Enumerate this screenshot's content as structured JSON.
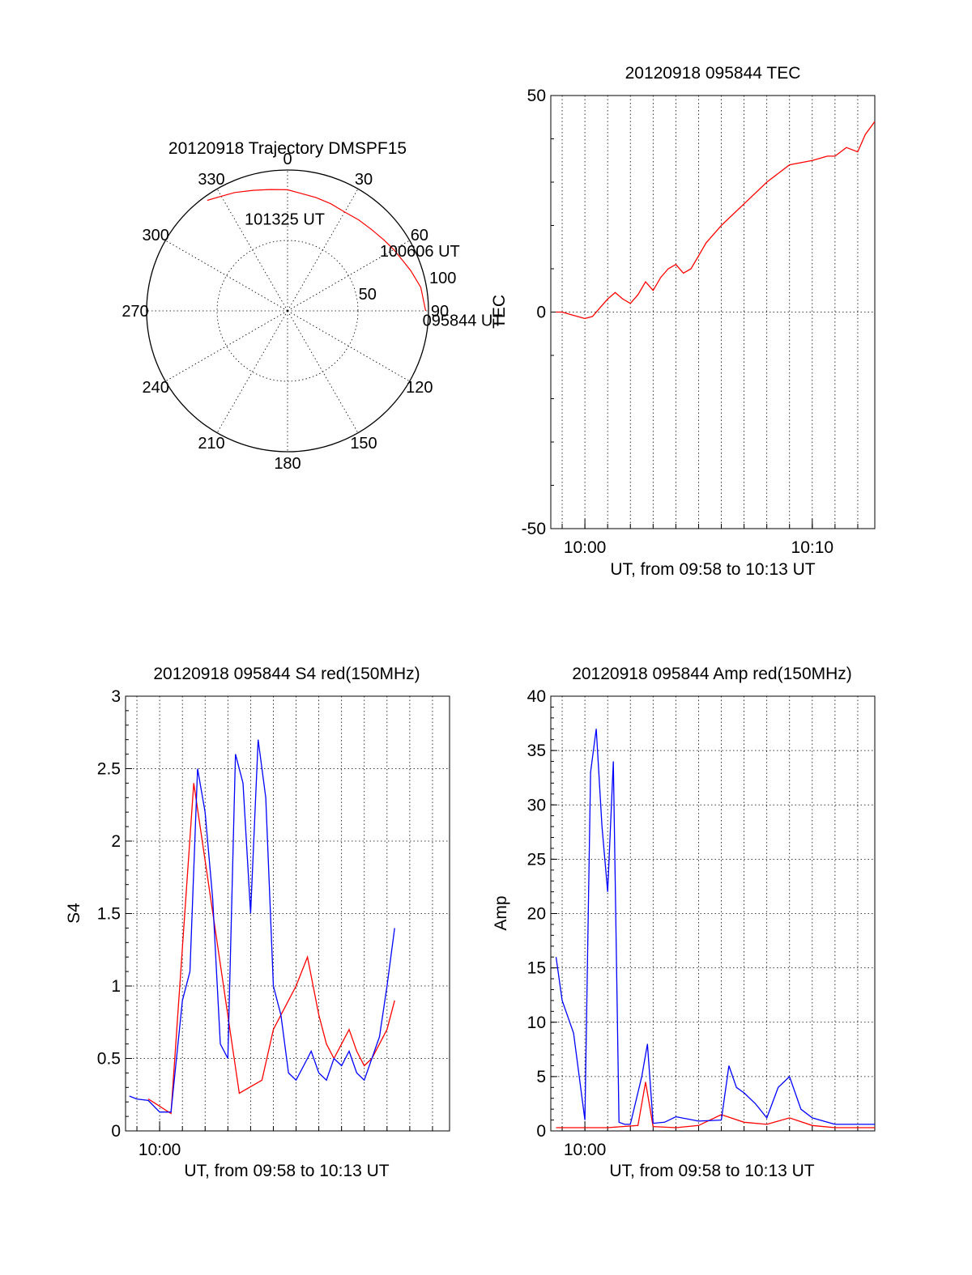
{
  "chart_data": [
    {
      "type": "polar",
      "title": "20120918 Trajectory DMSPF15",
      "angle_labels": [
        "0",
        "30",
        "60",
        "90",
        "120",
        "150",
        "180",
        "210",
        "240",
        "270",
        "300",
        "330"
      ],
      "radius_labels": [
        "50",
        "100"
      ],
      "rlim": [
        0,
        100
      ],
      "rings": [
        50,
        100
      ],
      "grid": true,
      "series": [
        {
          "color": "#ff0000",
          "points": [
            {
              "az": 90,
              "r": 98
            },
            {
              "az": 80,
              "r": 96
            },
            {
              "az": 72,
              "r": 92
            },
            {
              "az": 66,
              "r": 89
            },
            {
              "az": 60,
              "r": 87
            },
            {
              "az": 54,
              "r": 85
            },
            {
              "az": 46,
              "r": 83
            },
            {
              "az": 38,
              "r": 82
            },
            {
              "az": 30,
              "r": 81
            },
            {
              "az": 22,
              "r": 82
            },
            {
              "az": 14,
              "r": 83
            },
            {
              "az": 6,
              "r": 84
            },
            {
              "az": 0,
              "r": 86
            },
            {
              "az": 352,
              "r": 87
            },
            {
              "az": 344,
              "r": 89
            },
            {
              "az": 336,
              "r": 92
            },
            {
              "az": 330,
              "r": 94
            },
            {
              "az": 324,
              "r": 97
            }
          ]
        }
      ],
      "annotations": [
        {
          "text": "095844 UT",
          "az": 94,
          "r": 96
        },
        {
          "text": "100606 UT",
          "az": 57,
          "r": 78
        },
        {
          "text": "101325 UT",
          "az": 335,
          "r": 72
        }
      ]
    },
    {
      "type": "line",
      "title": "20120918 095844 TEC",
      "xlabel": "UT, from 09:58 to 10:13 UT",
      "ylabel": "TEC",
      "xlim": [
        "09:58:30",
        "10:12:45"
      ],
      "ylim": [
        -50,
        50
      ],
      "x_tick_labels": [
        "10:00",
        "10:10"
      ],
      "y_tick_labels": [
        "50",
        "0",
        "-50"
      ],
      "y_ticks": [
        50,
        0,
        -50
      ],
      "grid": "vertical",
      "series": [
        {
          "color": "#ff0000",
          "x": [
            "09:58:44",
            "09:59:00",
            "09:59:20",
            "09:59:40",
            "10:00:00",
            "10:00:20",
            "10:00:40",
            "10:01:00",
            "10:01:20",
            "10:01:40",
            "10:02:00",
            "10:02:20",
            "10:02:40",
            "10:03:00",
            "10:03:20",
            "10:03:40",
            "10:04:00",
            "10:04:20",
            "10:04:40",
            "10:05:00",
            "10:05:20",
            "10:05:40",
            "10:06:00",
            "10:07:00",
            "10:08:00",
            "10:09:00",
            "10:10:00",
            "10:10:40",
            "10:11:00",
            "10:11:30",
            "10:12:00",
            "10:12:20",
            "10:12:45"
          ],
          "y": [
            0,
            0,
            -0.5,
            -1,
            -1.5,
            -1,
            1,
            3,
            4.5,
            3,
            2,
            4,
            7,
            5,
            8,
            10,
            11,
            9,
            10,
            13,
            16,
            18,
            20,
            25,
            30,
            34,
            35,
            36,
            36,
            38,
            37,
            41,
            44
          ]
        }
      ]
    },
    {
      "type": "line",
      "title": "20120918 095844 S4 red(150MHz)",
      "xlabel": "UT, from 09:58 to 10:13 UT",
      "ylabel": "S4",
      "xlim": [
        "09:58:30",
        "10:12:45"
      ],
      "ylim": [
        0,
        3
      ],
      "x_tick_labels": [
        "10:00"
      ],
      "y_tick_labels": [
        "0",
        "0.5",
        "1",
        "1.5",
        "2",
        "2.5",
        "3"
      ],
      "y_ticks": [
        0,
        0.5,
        1,
        1.5,
        2,
        2.5,
        3
      ],
      "grid": true,
      "series": [
        {
          "color": "#ff0000",
          "x": [
            "09:59:30",
            "10:00:30",
            "10:01:30",
            "10:03:30",
            "10:04:30",
            "10:05:00",
            "10:05:30",
            "10:06:00",
            "10:06:30",
            "10:07:00",
            "10:07:20",
            "10:07:40",
            "10:08:00",
            "10:08:20",
            "10:08:40",
            "10:09:00",
            "10:09:20",
            "10:09:40",
            "10:10:00",
            "10:10:20"
          ],
          "y": [
            0.22,
            0.12,
            2.4,
            0.26,
            0.35,
            0.7,
            0.85,
            1.0,
            1.2,
            0.8,
            0.6,
            0.5,
            0.6,
            0.7,
            0.55,
            0.45,
            0.5,
            0.6,
            0.7,
            0.9
          ]
        },
        {
          "color": "#0000ff",
          "x": [
            "09:58:40",
            "09:59:00",
            "09:59:30",
            "10:00:00",
            "10:00:30",
            "10:01:00",
            "10:01:20",
            "10:01:40",
            "10:02:00",
            "10:02:20",
            "10:02:40",
            "10:03:00",
            "10:03:20",
            "10:03:40",
            "10:04:00",
            "10:04:20",
            "10:04:40",
            "10:05:00",
            "10:05:20",
            "10:05:40",
            "10:06:00",
            "10:06:20",
            "10:06:40",
            "10:07:00",
            "10:07:20",
            "10:07:40",
            "10:08:00",
            "10:08:20",
            "10:08:40",
            "10:09:00",
            "10:09:20",
            "10:09:40",
            "10:10:00",
            "10:10:20"
          ],
          "y": [
            0.24,
            0.22,
            0.21,
            0.13,
            0.13,
            0.9,
            1.1,
            2.5,
            2.2,
            1.6,
            0.6,
            0.5,
            2.6,
            2.4,
            1.5,
            2.7,
            2.3,
            1.0,
            0.8,
            0.4,
            0.35,
            0.45,
            0.55,
            0.4,
            0.35,
            0.5,
            0.45,
            0.55,
            0.4,
            0.35,
            0.5,
            0.65,
            1.0,
            1.4
          ]
        }
      ]
    },
    {
      "type": "line",
      "title": "20120918 095844 Amp red(150MHz)",
      "xlabel": "UT, from 09:58 to 10:13 UT",
      "ylabel": "Amp",
      "xlim": [
        "09:58:30",
        "10:12:45"
      ],
      "ylim": [
        0,
        40
      ],
      "x_tick_labels": [
        "10:00"
      ],
      "y_tick_labels": [
        "0",
        "5",
        "10",
        "15",
        "20",
        "25",
        "30",
        "35",
        "40"
      ],
      "y_ticks": [
        0,
        5,
        10,
        15,
        20,
        25,
        30,
        35,
        40
      ],
      "grid": true,
      "series": [
        {
          "color": "#ff0000",
          "x": [
            "09:58:44",
            "10:00:00",
            "10:01:00",
            "10:02:20",
            "10:02:40",
            "10:03:00",
            "10:04:00",
            "10:05:00",
            "10:06:00",
            "10:07:00",
            "10:08:00",
            "10:09:00",
            "10:10:00",
            "10:11:00",
            "10:12:45"
          ],
          "y": [
            0.3,
            0.3,
            0.3,
            0.5,
            4.5,
            0.4,
            0.3,
            0.5,
            1.5,
            0.8,
            0.6,
            1.2,
            0.5,
            0.3,
            0.3
          ]
        },
        {
          "color": "#0000ff",
          "x": [
            "09:58:44",
            "09:59:00",
            "09:59:30",
            "10:00:00",
            "10:00:15",
            "10:00:30",
            "10:00:45",
            "10:01:00",
            "10:01:15",
            "10:01:30",
            "10:01:45",
            "10:02:00",
            "10:02:30",
            "10:02:45",
            "10:03:00",
            "10:03:30",
            "10:04:00",
            "10:05:00",
            "10:06:00",
            "10:06:20",
            "10:06:40",
            "10:07:00",
            "10:07:30",
            "10:08:00",
            "10:08:30",
            "10:09:00",
            "10:09:30",
            "10:10:00",
            "10:11:00",
            "10:12:00",
            "10:12:45"
          ],
          "y": [
            16,
            12,
            9,
            1,
            33,
            37,
            28,
            22,
            34,
            0.8,
            0.6,
            0.6,
            5,
            8,
            0.7,
            0.8,
            1.3,
            0.9,
            1.0,
            6,
            4,
            3.5,
            2.5,
            1.2,
            4,
            5,
            2.0,
            1.2,
            0.6,
            0.6,
            0.6
          ]
        }
      ]
    }
  ]
}
